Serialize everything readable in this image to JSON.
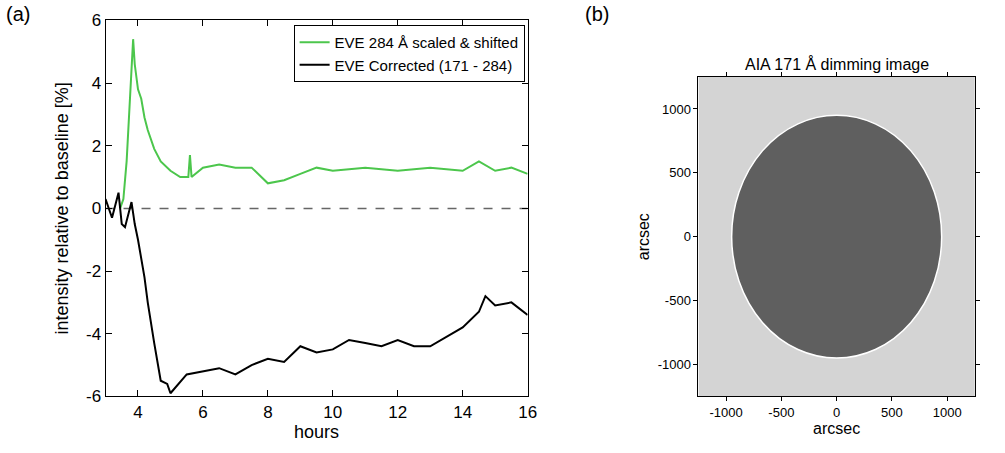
{
  "chart_data": [
    {
      "type": "line",
      "panel_label": "(a)",
      "x_label": "hours",
      "y_label": "intensity relative to baseline [%]",
      "xlim": [
        3,
        16
      ],
      "xticks": [
        4,
        6,
        8,
        10,
        12,
        14,
        16
      ],
      "ylim": [
        -6,
        6
      ],
      "yticks": [
        -6,
        -4,
        -2,
        0,
        2,
        4,
        6
      ],
      "reference_line": 0,
      "legend": "top right",
      "series": [
        {
          "name": "EVE 284 Å scaled & shifted",
          "color": "#4cc64c",
          "x": [
            3.45,
            3.55,
            3.65,
            3.75,
            3.85,
            3.9,
            4.0,
            4.1,
            4.2,
            4.3,
            4.5,
            4.7,
            5.0,
            5.3,
            5.55,
            5.6,
            5.65,
            6.0,
            6.5,
            7.0,
            7.5,
            8.0,
            8.5,
            9.0,
            9.5,
            10,
            11,
            12,
            13,
            14,
            14.5,
            15,
            15.5,
            16
          ],
          "values": [
            0,
            0.3,
            1.5,
            3.5,
            5.4,
            4.6,
            3.8,
            3.5,
            2.9,
            2.5,
            1.9,
            1.5,
            1.2,
            1.0,
            1.0,
            1.7,
            1.0,
            1.3,
            1.4,
            1.3,
            1.3,
            0.8,
            0.9,
            1.1,
            1.3,
            1.2,
            1.3,
            1.2,
            1.3,
            1.2,
            1.5,
            1.2,
            1.3,
            1.1
          ]
        },
        {
          "name": "EVE Corrected (171 - 284)",
          "color": "#000000",
          "x": [
            3.0,
            3.2,
            3.4,
            3.5,
            3.6,
            3.8,
            3.9,
            4.0,
            4.2,
            4.3,
            4.5,
            4.7,
            4.9,
            5.0,
            5.5,
            6.0,
            6.5,
            7.0,
            7.5,
            8.0,
            8.5,
            9.0,
            9.5,
            10,
            10.5,
            11,
            11.5,
            12,
            12.5,
            13,
            13.5,
            14,
            14.5,
            14.7,
            15,
            15.5,
            16
          ],
          "values": [
            0.3,
            -0.3,
            0.5,
            -0.5,
            -0.6,
            0.2,
            -0.5,
            -1.0,
            -2.2,
            -3.0,
            -4.3,
            -5.5,
            -5.6,
            -5.9,
            -5.3,
            -5.2,
            -5.1,
            -5.3,
            -5.0,
            -4.8,
            -4.9,
            -4.4,
            -4.6,
            -4.5,
            -4.2,
            -4.3,
            -4.4,
            -4.2,
            -4.4,
            -4.4,
            -4.1,
            -3.8,
            -3.3,
            -2.8,
            -3.1,
            -3.0,
            -3.4
          ]
        }
      ]
    },
    {
      "type": "image",
      "panel_label": "(b)",
      "title": "AIA 171 Å dimming image",
      "x_label": "arcsec",
      "y_label": "arcsec",
      "xlim": [
        -1250,
        1250
      ],
      "xticks": [
        -1000,
        -500,
        0,
        500,
        1000
      ],
      "ylim": [
        -1250,
        1250
      ],
      "yticks": [
        -1000,
        -500,
        0,
        500,
        1000
      ],
      "disk_radius": 950
    }
  ]
}
